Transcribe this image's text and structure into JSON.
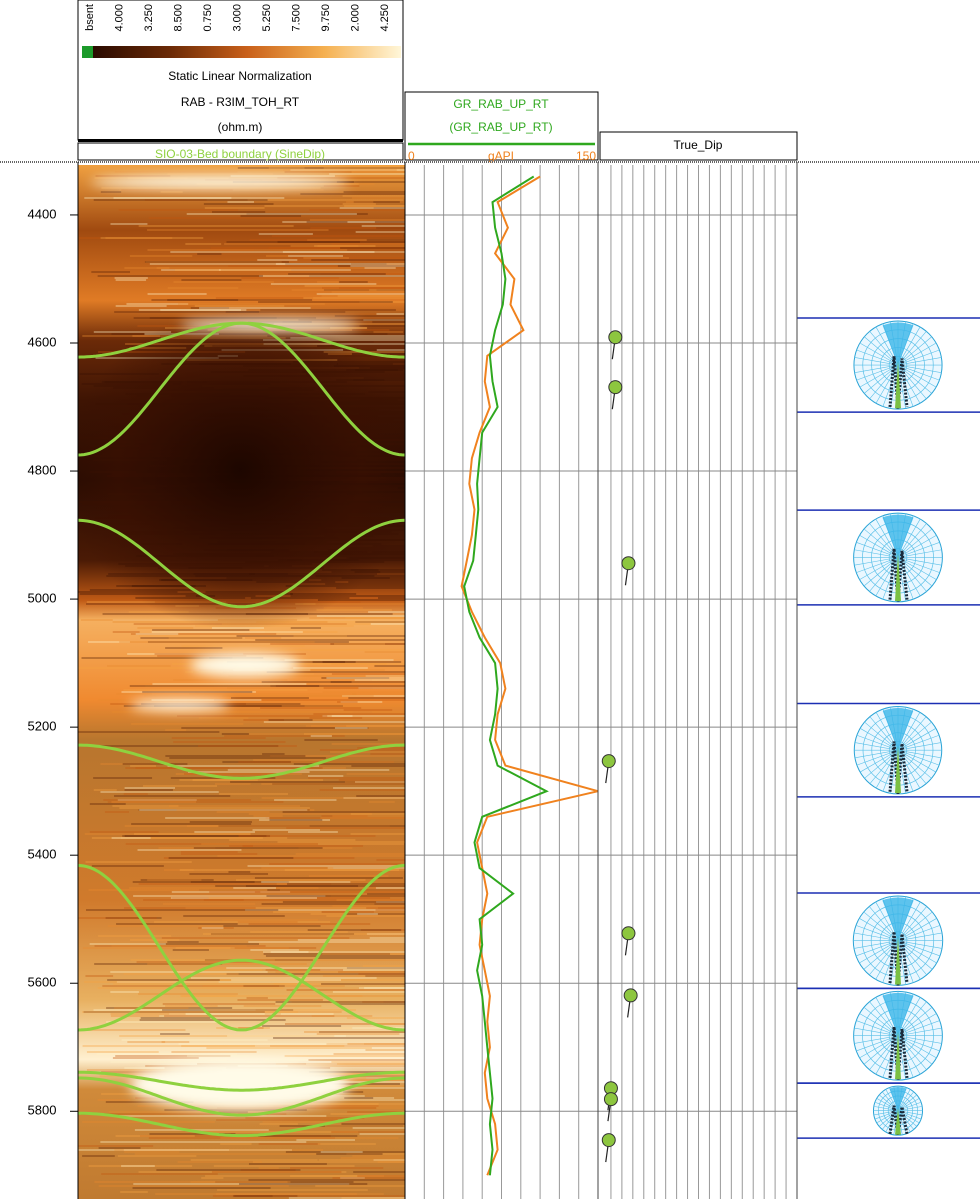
{
  "chart_data": {
    "type": "line",
    "color_scale": {
      "labels": [
        "bsent",
        "4.000",
        "3.250",
        "8.500",
        "0.750",
        "3.000",
        "5.250",
        "7.500",
        "9.750",
        "2.000",
        "4.250"
      ]
    },
    "image_track": {
      "normalization": "Static Linear Normalization",
      "curve": "RAB - R3IM_TOH_RT",
      "unit": "(ohm.m)",
      "overlay": "SIO-03-Bed boundary (SineDip)",
      "overlay_color": "#8fd13f"
    },
    "x_label": "gAPI",
    "xlim": [
      0,
      150
    ],
    "xticks": [
      0,
      15,
      30,
      45,
      60,
      75,
      90,
      105,
      120,
      135,
      150
    ],
    "ylim": [
      4322,
      5937
    ],
    "yticks": [
      4400,
      4600,
      4800,
      5000,
      5200,
      5400,
      5600,
      5800
    ],
    "x": [
      4340,
      4380,
      4420,
      4460,
      4500,
      4540,
      4580,
      4620,
      4660,
      4700,
      4740,
      4780,
      4820,
      4860,
      4900,
      4940,
      4980,
      5020,
      5060,
      5100,
      5140,
      5180,
      5220,
      5260,
      5300,
      5340,
      5380,
      5420,
      5460,
      5500,
      5540,
      5580,
      5620,
      5660,
      5700,
      5740,
      5780,
      5820,
      5860,
      5900
    ],
    "series": [
      {
        "name": "GR_RAB_UP_RT",
        "color": "#2fa81e",
        "values": [
          100,
          68,
          70,
          75,
          78,
          76,
          70,
          66,
          68,
          72,
          60,
          58,
          56,
          57,
          55,
          53,
          46,
          50,
          58,
          70,
          72,
          70,
          66,
          72,
          110,
          60,
          54,
          58,
          84,
          58,
          60,
          56,
          60,
          62,
          64,
          66,
          68,
          66,
          68,
          66
        ]
      },
      {
        "name": "(GR_RAB_UP_RT)",
        "color": "#f0821e",
        "values": [
          105,
          72,
          80,
          70,
          85,
          82,
          92,
          64,
          62,
          66,
          58,
          52,
          50,
          54,
          52,
          48,
          44,
          52,
          62,
          74,
          78,
          72,
          70,
          78,
          150,
          64,
          56,
          60,
          64,
          60,
          58,
          62,
          66,
          64,
          66,
          62,
          64,
          70,
          72,
          64
        ]
      }
    ],
    "sinusoids": [
      {
        "center_depth": 4569,
        "edge_depth": 4622
      },
      {
        "center_depth": 4569,
        "edge_depth": 4775
      },
      {
        "center_depth": 5012,
        "edge_depth": 4877
      },
      {
        "center_depth": 5280,
        "edge_depth": 5228
      },
      {
        "center_depth": 5673,
        "edge_depth": 5416
      },
      {
        "center_depth": 5564,
        "edge_depth": 5673
      },
      {
        "center_depth": 5767,
        "edge_depth": 5739
      },
      {
        "center_depth": 5806,
        "edge_depth": 5748
      },
      {
        "center_depth": 5838,
        "edge_depth": 5803
      }
    ],
    "dip_track": {
      "title": "True_Dip",
      "xlim": [
        0,
        90
      ],
      "xticks": [
        5,
        10,
        15,
        20,
        25,
        30,
        35,
        40,
        45,
        50,
        55,
        60,
        65,
        70,
        75,
        80,
        85
      ],
      "color": "#8dc63f",
      "depths": [
        4591,
        4669,
        4944,
        5253,
        5522,
        5619,
        5764,
        5781,
        5845
      ],
      "values": [
        7,
        7,
        13,
        4,
        13,
        14,
        5,
        5,
        4
      ]
    },
    "rose_intervals": [
      [
        4561,
        4708
      ],
      [
        4861,
        5009
      ],
      [
        5163,
        5309
      ],
      [
        5459,
        5608
      ],
      [
        5608,
        5756
      ],
      [
        5756,
        5842
      ]
    ],
    "rose_line_color": "#1b2fb3"
  }
}
